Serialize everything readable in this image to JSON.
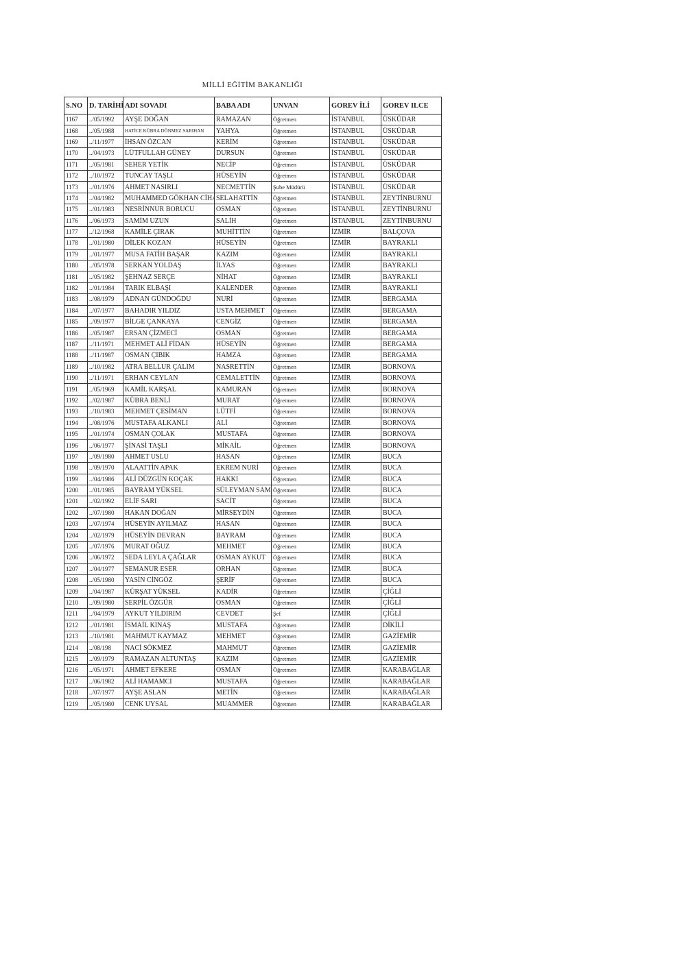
{
  "title": "MİLLİ EĞİTİM BAKANLIĞI",
  "columns": [
    "S.NO",
    "D. TARİHİ",
    "ADI SOVADI",
    "BABA ADI",
    "UNVAN",
    "GOREV İLİ",
    "GOREV ILCE"
  ],
  "rows": [
    [
      "1167",
      "../05/1992",
      "AYŞE DOĞAN",
      "RAMAZAN",
      "Öğretmen",
      "İSTANBUL",
      "ÜSKÜDAR"
    ],
    [
      "1168",
      "../05/1988",
      "HATİCE KÜBRA DÖNMEZ SARIHAN",
      "YAHYA",
      "Öğretmen",
      "İSTANBUL",
      "ÜSKÜDAR"
    ],
    [
      "1169",
      "../11/1977",
      "İHSAN ÖZCAN",
      "KERİM",
      "Öğretmen",
      "İSTANBUL",
      "ÜSKÜDAR"
    ],
    [
      "1170",
      "../04/1973",
      "LÜTFULLAH GÜNEY",
      "DURSUN",
      "Öğretmen",
      "İSTANBUL",
      "ÜSKÜDAR"
    ],
    [
      "1171",
      "../05/1981",
      "SEHER YETİK",
      "NECİP",
      "Öğretmen",
      "İSTANBUL",
      "ÜSKÜDAR"
    ],
    [
      "1172",
      "../10/1972",
      "TUNCAY TAŞLI",
      "HÜSEYİN",
      "Öğretmen",
      "İSTANBUL",
      "ÜSKÜDAR"
    ],
    [
      "1173",
      "../01/1976",
      "AHMET NASIRLI",
      "NECMETTİN",
      "Şube Müdürü",
      "İSTANBUL",
      "ÜSKÜDAR"
    ],
    [
      "1174",
      "../04/1982",
      "MUHAMMED GÖKHAN CİHAN",
      "SELAHATTİN",
      "Öğretmen",
      "İSTANBUL",
      "ZEYTİNBURNU"
    ],
    [
      "1175",
      "../01/1983",
      "NESRİNNUR BORUCU",
      "OSMAN",
      "Öğretmen",
      "İSTANBUL",
      "ZEYTİNBURNU"
    ],
    [
      "1176",
      "../06/1973",
      "SAMİM UZUN",
      "SALİH",
      "Öğretmen",
      "İSTANBUL",
      "ZEYTİNBURNU"
    ],
    [
      "1177",
      "../12/1968",
      "KAMİLE ÇIRAK",
      "MUHİTTİN",
      "Öğretmen",
      "İZMİR",
      "BALÇOVA"
    ],
    [
      "1178",
      "../01/1980",
      "DİLEK KOZAN",
      "HÜSEYİN",
      "Öğretmen",
      "İZMİR",
      "BAYRAKLI"
    ],
    [
      "1179",
      "../01/1977",
      "MUSA FATİH BAŞAR",
      "KAZIM",
      "Öğretmen",
      "İZMİR",
      "BAYRAKLI"
    ],
    [
      "1180",
      "../05/1978",
      "SERKAN YOLDAŞ",
      "İLYAS",
      "Öğretmen",
      "İZMİR",
      "BAYRAKLI"
    ],
    [
      "1181",
      "../05/1982",
      "ŞEHNAZ SERÇE",
      "NİHAT",
      "Öğretmen",
      "İZMİR",
      "BAYRAKLI"
    ],
    [
      "1182",
      "../01/1984",
      "TARIK ELBAŞI",
      "KALENDER",
      "Öğretmen",
      "İZMİR",
      "BAYRAKLI"
    ],
    [
      "1183",
      "../08/1979",
      "ADNAN GÜNDOĞDU",
      "NURİ",
      "Öğretmen",
      "İZMİR",
      "BERGAMA"
    ],
    [
      "1184",
      "../07/1977",
      "BAHADIR YILDIZ",
      "USTA MEHMET",
      "Öğretmen",
      "İZMİR",
      "BERGAMA"
    ],
    [
      "1185",
      "../09/1977",
      "BİLGE ÇANKAYA",
      "CENGİZ",
      "Öğretmen",
      "İZMİR",
      "BERGAMA"
    ],
    [
      "1186",
      "../05/1987",
      "ERSAN ÇİZMECİ",
      "OSMAN",
      "Öğretmen",
      "İZMİR",
      "BERGAMA"
    ],
    [
      "1187",
      "../11/1971",
      "MEHMET ALİ FİDAN",
      "HÜSEYİN",
      "Öğretmen",
      "İZMİR",
      "BERGAMA"
    ],
    [
      "1188",
      "../11/1987",
      "OSMAN ÇIBIK",
      "HAMZA",
      "Öğretmen",
      "İZMİR",
      "BERGAMA"
    ],
    [
      "1189",
      "../10/1982",
      "ATRA BELLUR ÇALIM",
      "NASRETTİN",
      "Öğretmen",
      "İZMİR",
      "BORNOVA"
    ],
    [
      "1190",
      "../11/1971",
      "ERHAN CEYLAN",
      "CEMALETTİN",
      "Öğretmen",
      "İZMİR",
      "BORNOVA"
    ],
    [
      "1191",
      "../05/1969",
      "KAMİL KARŞAL",
      "KAMURAN",
      "Öğretmen",
      "İZMİR",
      "BORNOVA"
    ],
    [
      "1192",
      "../02/1987",
      "KÜBRA BENLİ",
      "MURAT",
      "Öğretmen",
      "İZMİR",
      "BORNOVA"
    ],
    [
      "1193",
      "../10/1983",
      "MEHMET ÇESİMAN",
      "LÜTFİ",
      "Öğretmen",
      "İZMİR",
      "BORNOVA"
    ],
    [
      "1194",
      "../08/1976",
      "MUSTAFA ALKANLI",
      "ALİ",
      "Öğretmen",
      "İZMİR",
      "BORNOVA"
    ],
    [
      "1195",
      "../01/1974",
      "OSMAN ÇOLAK",
      "MUSTAFA",
      "Öğretmen",
      "İZMİR",
      "BORNOVA"
    ],
    [
      "1196",
      "../06/1977",
      "ŞİNASİ TAŞLI",
      "MİKAİL",
      "Öğretmen",
      "İZMİR",
      "BORNOVA"
    ],
    [
      "1197",
      "../09/1980",
      "AHMET USLU",
      "HASAN",
      "Öğretmen",
      "İZMİR",
      "BUCA"
    ],
    [
      "1198",
      "../09/1970",
      "ALAATTİN APAK",
      "EKREM NURİ",
      "Öğretmen",
      "İZMİR",
      "BUCA"
    ],
    [
      "1199",
      "../04/1986",
      "ALİ DÜZGÜN KOÇAK",
      "HAKKI",
      "Öğretmen",
      "İZMİR",
      "BUCA"
    ],
    [
      "1200",
      "../01/1985",
      "BAYRAM YÜKSEL",
      "SÜLEYMAN SAMİ",
      "Öğretmen",
      "İZMİR",
      "BUCA"
    ],
    [
      "1201",
      "../02/1992",
      "ELİF SARI",
      "SACİT",
      "Öğretmen",
      "İZMİR",
      "BUCA"
    ],
    [
      "1202",
      "../07/1980",
      "HAKAN DOĞAN",
      "MİRSEYDİN",
      "Öğretmen",
      "İZMİR",
      "BUCA"
    ],
    [
      "1203",
      "../07/1974",
      "HÜSEYİN AYILMAZ",
      "HASAN",
      "Öğretmen",
      "İZMİR",
      "BUCA"
    ],
    [
      "1204",
      "../02/1979",
      "HÜSEYİN DEVRAN",
      "BAYRAM",
      "Öğretmen",
      "İZMİR",
      "BUCA"
    ],
    [
      "1205",
      "../07/1976",
      "MURAT OĞUZ",
      "MEHMET",
      "Öğretmen",
      "İZMİR",
      "BUCA"
    ],
    [
      "1206",
      "../06/1972",
      "SEDA LEYLA ÇAĞLAR",
      "OSMAN AYKUT",
      "Öğretmen",
      "İZMİR",
      "BUCA"
    ],
    [
      "1207",
      "../04/1977",
      "SEMANUR ESER",
      "ORHAN",
      "Öğretmen",
      "İZMİR",
      "BUCA"
    ],
    [
      "1208",
      "../05/1980",
      "YASİN CİNGÖZ",
      "ŞERİF",
      "Öğretmen",
      "İZMİR",
      "BUCA"
    ],
    [
      "1209",
      "../04/1987",
      "KÜRŞAT YÜKSEL",
      "KADİR",
      "Öğretmen",
      "İZMİR",
      "ÇİĞLİ"
    ],
    [
      "1210",
      "../09/1980",
      "SERPİL ÖZGÜR",
      "OSMAN",
      "Öğretmen",
      "İZMİR",
      "ÇİĞLİ"
    ],
    [
      "1211",
      "../04/1979",
      "AYKUT YILDIRIM",
      "CEVDET",
      "Şef",
      "İZMİR",
      "ÇİĞLİ"
    ],
    [
      "1212",
      "../01/1981",
      "İSMAİL KINAŞ",
      "MUSTAFA",
      "Öğretmen",
      "İZMİR",
      "DİKİLİ"
    ],
    [
      "1213",
      "../10/1981",
      "MAHMUT KAYMAZ",
      "MEHMET",
      "Öğretmen",
      "İZMİR",
      "GAZİEMİR"
    ],
    [
      "1214",
      "../08/198",
      "NACİ SÖKMEZ",
      "MAHMUT",
      "Öğretmen",
      "İZMİR",
      "GAZİEMİR"
    ],
    [
      "1215",
      "../09/1979",
      "RAMAZAN ALTUNTAŞ",
      "KAZIM",
      "Öğretmen",
      "İZMİR",
      "GAZİEMİR"
    ],
    [
      "1216",
      "../05/1971",
      "AHMET EFKERE",
      "OSMAN",
      "Öğretmen",
      "İZMİR",
      "KARABAĞLAR"
    ],
    [
      "1217",
      "../06/1982",
      "ALİ HAMAMCI",
      "MUSTAFA",
      "Öğretmen",
      "İZMİR",
      "KARABAĞLAR"
    ],
    [
      "1218",
      "../07/1977",
      "AYŞE ASLAN",
      "METİN",
      "Öğretmen",
      "İZMİR",
      "KARABAĞLAR"
    ],
    [
      "1219",
      "../05/1980",
      "CENK UYSAL",
      "MUAMMER",
      "Öğretmen",
      "İZMİR",
      "KARABAĞLAR"
    ]
  ]
}
